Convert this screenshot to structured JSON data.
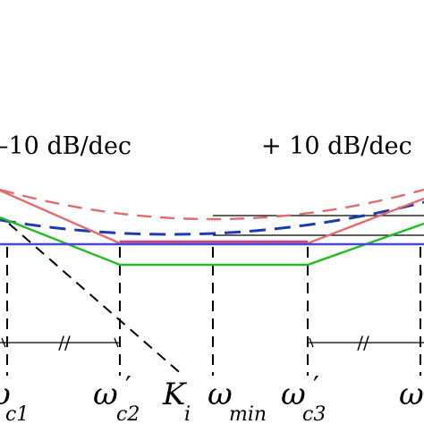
{
  "labels": {
    "slope_left": "–10 dB/dec",
    "slope_right": "+ 10 dB/dec",
    "omega_symbol": "ω",
    "k_symbol": "K",
    "prime_mark": "′",
    "sub_c1": "c1",
    "sub_c2": "c2",
    "sub_k": "i",
    "sub_min": "min",
    "sub_c3": "c3",
    "break_mark": "//"
  },
  "colors": {
    "red": "#e26c6c",
    "blue": "#1d3bb0",
    "green": "#22bb22",
    "purple": "#4848d8",
    "black": "#000000"
  }
}
